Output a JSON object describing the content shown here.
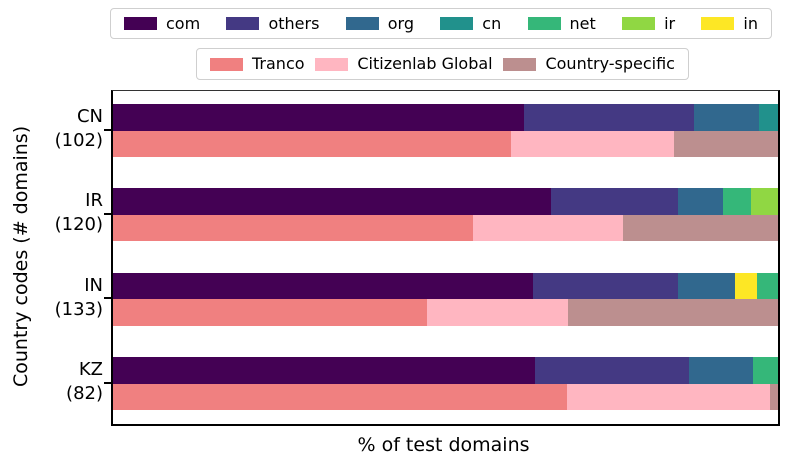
{
  "figure": {
    "xlabel": "% of test domains",
    "ylabel": "Country codes (# domains)"
  },
  "legends": {
    "tld": [
      {
        "label": "com",
        "color": "#440154"
      },
      {
        "label": "others",
        "color": "#443983"
      },
      {
        "label": "org",
        "color": "#31688e"
      },
      {
        "label": "cn",
        "color": "#21918c"
      },
      {
        "label": "net",
        "color": "#35b779"
      },
      {
        "label": "ir",
        "color": "#90d743"
      },
      {
        "label": "in",
        "color": "#fde725"
      }
    ],
    "source": [
      {
        "label": "Tranco",
        "color": "#f08080"
      },
      {
        "label": "Citizenlab Global",
        "color": "#ffb6c1"
      },
      {
        "label": "Country-specific",
        "color": "#bc8f8f"
      }
    ]
  },
  "chart_data": {
    "type": "bar",
    "orientation": "horizontal",
    "stacked": true,
    "title": "",
    "xlabel": "% of test domains",
    "ylabel": "Country codes (# domains)",
    "xlim": [
      0,
      100
    ],
    "legend_tld": [
      "com",
      "others",
      "org",
      "cn",
      "net",
      "ir",
      "in"
    ],
    "legend_source": [
      "Tranco",
      "Citizenlab Global",
      "Country-specific"
    ],
    "groups": [
      {
        "country": "CN",
        "count_label": "(102)",
        "num_domains": 102,
        "tld_bar": [
          {
            "label": "com",
            "value": 61.8
          },
          {
            "label": "others",
            "value": 25.5
          },
          {
            "label": "org",
            "value": 9.8
          },
          {
            "label": "cn",
            "value": 2.9
          }
        ],
        "source_bar": [
          {
            "label": "Tranco",
            "value": 59.8
          },
          {
            "label": "Citizenlab Global",
            "value": 24.5
          },
          {
            "label": "Country-specific",
            "value": 15.7
          }
        ]
      },
      {
        "country": "IR",
        "count_label": "(120)",
        "num_domains": 120,
        "tld_bar": [
          {
            "label": "com",
            "value": 65.8
          },
          {
            "label": "others",
            "value": 19.2
          },
          {
            "label": "org",
            "value": 6.7
          },
          {
            "label": "net",
            "value": 4.2
          },
          {
            "label": "ir",
            "value": 4.1
          }
        ],
        "source_bar": [
          {
            "label": "Tranco",
            "value": 54.2
          },
          {
            "label": "Citizenlab Global",
            "value": 22.5
          },
          {
            "label": "Country-specific",
            "value": 23.3
          }
        ]
      },
      {
        "country": "IN",
        "count_label": "(133)",
        "num_domains": 133,
        "tld_bar": [
          {
            "label": "com",
            "value": 63.2
          },
          {
            "label": "others",
            "value": 21.8
          },
          {
            "label": "org",
            "value": 8.6
          },
          {
            "label": "in",
            "value": 3.2
          },
          {
            "label": "net",
            "value": 3.2
          }
        ],
        "source_bar": [
          {
            "label": "Tranco",
            "value": 47.2
          },
          {
            "label": "Citizenlab Global",
            "value": 21.2
          },
          {
            "label": "Country-specific",
            "value": 31.6
          }
        ]
      },
      {
        "country": "KZ",
        "count_label": "(82)",
        "num_domains": 82,
        "tld_bar": [
          {
            "label": "com",
            "value": 63.4
          },
          {
            "label": "others",
            "value": 23.2
          },
          {
            "label": "org",
            "value": 9.7
          },
          {
            "label": "net",
            "value": 3.7
          }
        ],
        "source_bar": [
          {
            "label": "Tranco",
            "value": 68.3
          },
          {
            "label": "Citizenlab Global",
            "value": 30.5
          },
          {
            "label": "Country-specific",
            "value": 1.2
          }
        ]
      }
    ]
  }
}
